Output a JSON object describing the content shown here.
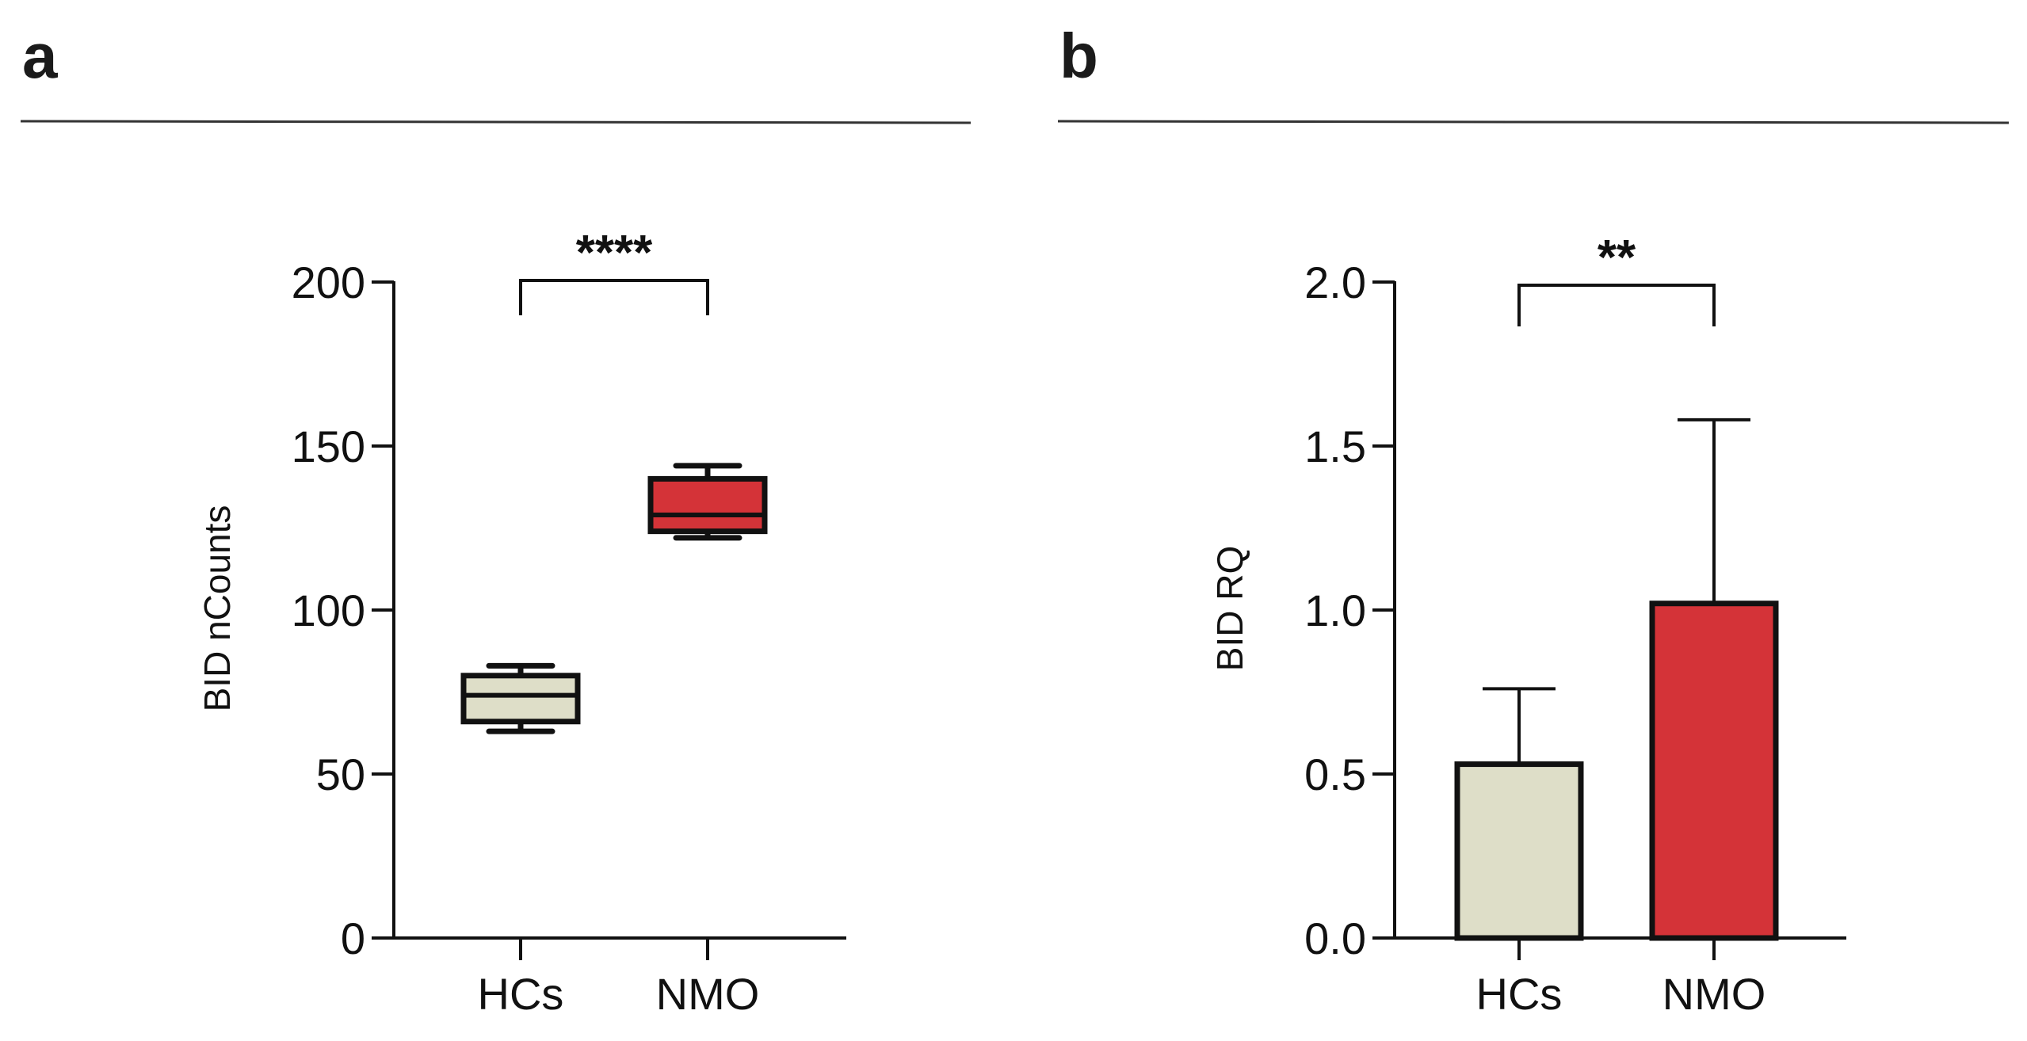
{
  "chart_data": [
    {
      "panel": "a",
      "type": "box",
      "ylabel": "BID nCounts",
      "xlabel": "",
      "ylim": [
        0,
        200
      ],
      "yticks": [
        0,
        50,
        100,
        150,
        200
      ],
      "categories": [
        "HCs",
        "NMO"
      ],
      "boxes": [
        {
          "name": "HCs",
          "min": 63,
          "q1": 66,
          "median": 74,
          "q3": 80,
          "max": 83,
          "color": "#dedec8"
        },
        {
          "name": "NMO",
          "min": 122,
          "q1": 124,
          "median": 129,
          "q3": 140,
          "max": 144,
          "color": "#d43338"
        }
      ],
      "significance": {
        "from": "HCs",
        "to": "NMO",
        "label": "****",
        "y": 200
      }
    },
    {
      "panel": "b",
      "type": "bar",
      "ylabel": "BID RQ",
      "xlabel": "",
      "ylim": [
        0,
        2.0
      ],
      "yticks": [
        0.0,
        0.5,
        1.0,
        1.5,
        2.0
      ],
      "tick_format": "0.0",
      "categories": [
        "HCs",
        "NMO"
      ],
      "values": [
        0.53,
        1.02
      ],
      "error_upper": [
        0.76,
        1.58
      ],
      "colors": [
        "#dedec8",
        "#d43338"
      ],
      "significance": {
        "from": "HCs",
        "to": "NMO",
        "label": "**",
        "y": 2.0
      }
    }
  ]
}
